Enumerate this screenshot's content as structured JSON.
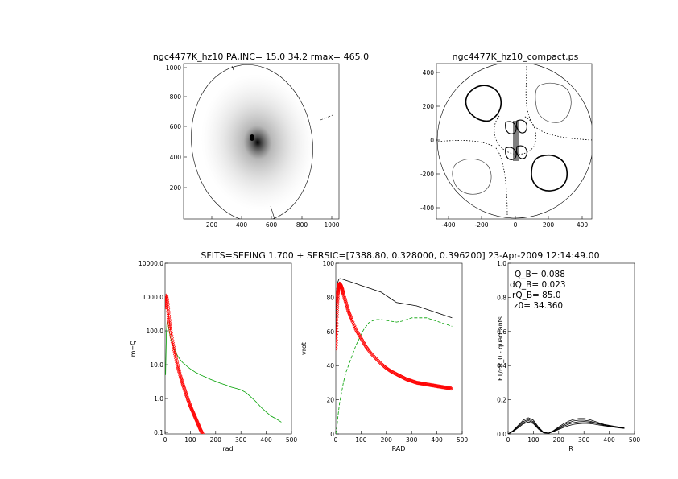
{
  "header": "SFITS=SEEING 1.700 + SERSIC=[7388.80, 0.328000, 0.396200]  23-Apr-2009 12:14:49.00",
  "colors": {
    "red": "#ff0000",
    "green": "#00a000",
    "black": "#000000",
    "gray": "#666666"
  },
  "chart_data": [
    {
      "type": "heatmap",
      "title": "ngc4477K_hz10 PA,INC= 15.0 34.2 rmax= 465.0",
      "xlim": [
        0,
        1050
      ],
      "ylim": [
        0,
        1050
      ],
      "xticks": [
        "200",
        "400",
        "600",
        "800",
        "1000"
      ],
      "yticks": [
        "200",
        "400",
        "600",
        "800",
        "1000"
      ],
      "galaxy_center": [
        470,
        530
      ],
      "ellipse": {
        "cx": 520,
        "cy": 490,
        "rx": 365,
        "ry": 505
      }
    },
    {
      "type": "contour",
      "title": "ngc4477K_hz10_compact.ps",
      "xlim": [
        -470,
        470
      ],
      "ylim": [
        -470,
        470
      ],
      "xticks": [
        "-400",
        "-200",
        "0",
        "200",
        "400"
      ],
      "yticks": [
        "400",
        "200",
        "0",
        "-200",
        "-400"
      ]
    },
    {
      "type": "line",
      "xlabel": "rad",
      "ylabel": "m=Q",
      "log_y": true,
      "xlim": [
        0,
        500
      ],
      "ylim": [
        0.09,
        10000
      ],
      "xticks": [
        "0",
        "100",
        "200",
        "300",
        "400",
        "500"
      ],
      "yticks": [
        "0.1",
        "1.0",
        "10.0",
        "100.0",
        "1000.0",
        "10000.0"
      ],
      "series": [
        {
          "color": "green",
          "x": [
            2,
            5,
            8,
            12,
            16,
            20,
            25,
            30,
            40,
            50,
            60,
            70,
            80,
            90,
            100,
            120,
            140,
            160,
            180,
            200,
            220,
            240,
            260,
            280,
            300,
            320,
            340,
            360,
            380,
            400,
            420,
            440,
            460
          ],
          "y": [
            5,
            80,
            200,
            160,
            100,
            70,
            50,
            38,
            25,
            18,
            14,
            11.5,
            10,
            8.5,
            7.5,
            6,
            5,
            4.3,
            3.7,
            3.2,
            2.8,
            2.5,
            2.2,
            2.0,
            1.8,
            1.5,
            1.1,
            0.8,
            0.55,
            0.4,
            0.3,
            0.25,
            0.2
          ]
        },
        {
          "color": "red",
          "marker": "diamond",
          "x": [
            2,
            5,
            10,
            15,
            20,
            30,
            40,
            50,
            60,
            70,
            80,
            90,
            100,
            110,
            120,
            130,
            140,
            150
          ],
          "y": [
            500,
            1100,
            600,
            250,
            120,
            45,
            20,
            9,
            4.8,
            2.7,
            1.6,
            0.95,
            0.6,
            0.4,
            0.27,
            0.18,
            0.12,
            0.085
          ]
        }
      ]
    },
    {
      "type": "line",
      "xlabel": "RAD",
      "ylabel": "vrot",
      "xlim": [
        0,
        500
      ],
      "ylim": [
        0,
        100
      ],
      "xticks": [
        "0",
        "100",
        "200",
        "300",
        "400",
        "500"
      ],
      "yticks": [
        "0",
        "20",
        "40",
        "60",
        "80",
        "100"
      ],
      "series": [
        {
          "color": "black",
          "x": [
            0,
            2,
            5,
            8,
            12,
            16,
            20,
            30,
            40,
            60,
            80,
            100,
            120,
            140,
            160,
            180,
            200,
            220,
            240,
            260,
            280,
            300,
            320,
            340,
            360,
            380,
            400,
            420,
            440,
            460
          ],
          "y": [
            50,
            75,
            85,
            89,
            90.5,
            91,
            91,
            90.5,
            90,
            89,
            88,
            87,
            86,
            85,
            84,
            83,
            81,
            79,
            77,
            76.5,
            76,
            75.5,
            75,
            74,
            73,
            72,
            71,
            70,
            69,
            68
          ]
        },
        {
          "color": "green",
          "dashed": true,
          "x": [
            0,
            5,
            10,
            15,
            20,
            25,
            30,
            40,
            50,
            60,
            70,
            80,
            90,
            100,
            110,
            120,
            130,
            140,
            150,
            160,
            170,
            180,
            200,
            220,
            240,
            260,
            280,
            300,
            320,
            340,
            360,
            380,
            400,
            420,
            440,
            460
          ],
          "y": [
            0,
            5,
            12,
            18,
            22,
            26,
            30,
            36,
            40,
            44,
            48,
            52,
            55,
            58,
            61,
            63,
            65,
            66,
            66.5,
            67,
            67,
            67,
            66.5,
            66,
            65.5,
            66,
            67,
            68,
            68,
            68,
            68,
            67,
            66,
            65,
            64,
            63
          ]
        },
        {
          "color": "red",
          "marker": "diamond",
          "x": [
            0,
            2,
            4,
            6,
            8,
            10,
            12,
            14,
            16,
            18,
            20,
            25,
            30,
            40,
            50,
            60,
            80,
            100,
            120,
            140,
            160,
            180,
            200,
            220,
            240,
            260,
            280,
            300,
            320,
            340,
            360,
            380,
            400,
            420,
            440,
            460
          ],
          "y": [
            50,
            60,
            70,
            77,
            82,
            85,
            87,
            88,
            88,
            87.5,
            87,
            85,
            82,
            77,
            72,
            68,
            61,
            56,
            51,
            47,
            44,
            41,
            38.5,
            36.5,
            35,
            33.5,
            32,
            31,
            30,
            29.5,
            29,
            28.5,
            28,
            27.5,
            27,
            26.5
          ]
        }
      ]
    },
    {
      "type": "line",
      "xlabel": "R",
      "ylabel": "FT/FR_0 - quadrants",
      "xlim": [
        0,
        500
      ],
      "ylim": [
        0,
        1
      ],
      "xticks": [
        "0",
        "100",
        "200",
        "300",
        "400",
        "500"
      ],
      "yticks": [
        "0.0",
        "0.2",
        "0.4",
        "0.6",
        "0.8",
        "1.0"
      ],
      "annotations": [
        "Q_B=  0.088",
        "dQ_B=  0.023",
        "rQ_B=  85.0",
        "z0= 34.360"
      ],
      "series": [
        {
          "color": "black",
          "x": [
            0,
            20,
            40,
            60,
            80,
            100,
            120,
            140,
            160,
            180,
            200,
            220,
            240,
            260,
            280,
            300,
            320,
            340,
            360,
            380,
            400,
            420,
            440,
            460
          ],
          "y": [
            0,
            0.02,
            0.05,
            0.08,
            0.095,
            0.08,
            0.04,
            0.01,
            0.005,
            0.02,
            0.04,
            0.06,
            0.075,
            0.085,
            0.09,
            0.09,
            0.085,
            0.075,
            0.065,
            0.055,
            0.05,
            0.045,
            0.04,
            0.035
          ]
        },
        {
          "color": "black",
          "x": [
            0,
            20,
            40,
            60,
            80,
            100,
            120,
            140,
            160,
            180,
            200,
            220,
            240,
            260,
            280,
            300,
            320,
            340,
            360,
            380,
            400,
            420,
            440,
            460
          ],
          "y": [
            0,
            0.018,
            0.045,
            0.072,
            0.085,
            0.072,
            0.035,
            0.008,
            0.004,
            0.018,
            0.035,
            0.052,
            0.066,
            0.076,
            0.08,
            0.08,
            0.076,
            0.068,
            0.06,
            0.052,
            0.047,
            0.042,
            0.038,
            0.034
          ]
        },
        {
          "color": "black",
          "x": [
            0,
            20,
            40,
            60,
            80,
            100,
            120,
            140,
            160,
            180,
            200,
            220,
            240,
            260,
            280,
            300,
            320,
            340,
            360,
            380,
            400,
            420,
            440,
            460
          ],
          "y": [
            0,
            0.016,
            0.04,
            0.065,
            0.078,
            0.066,
            0.032,
            0.007,
            0.003,
            0.016,
            0.03,
            0.045,
            0.057,
            0.066,
            0.071,
            0.072,
            0.07,
            0.064,
            0.057,
            0.05,
            0.045,
            0.04,
            0.036,
            0.033
          ]
        },
        {
          "color": "black",
          "x": [
            0,
            20,
            40,
            60,
            80,
            100,
            120,
            140,
            160,
            180,
            200,
            220,
            240,
            260,
            280,
            300,
            320,
            340,
            360,
            380,
            400,
            420,
            440,
            460
          ],
          "y": [
            0,
            0.014,
            0.036,
            0.058,
            0.07,
            0.06,
            0.028,
            0.006,
            0.003,
            0.014,
            0.026,
            0.038,
            0.048,
            0.056,
            0.06,
            0.062,
            0.061,
            0.057,
            0.052,
            0.047,
            0.043,
            0.039,
            0.035,
            0.032
          ]
        }
      ]
    }
  ]
}
